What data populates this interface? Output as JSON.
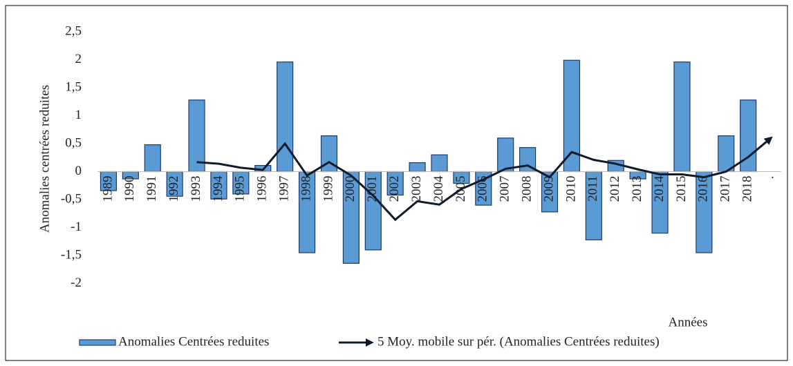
{
  "chart_data": {
    "type": "bar",
    "y_label": "Anomalies centrées reduites",
    "x_label": "Années",
    "categories": [
      "1989",
      "1990",
      "1991",
      "1992",
      "1993",
      "1994",
      "1995",
      "1996",
      "1997",
      "1998",
      "1999",
      "2000",
      "2001",
      "2002",
      "2003",
      "2004",
      "2005",
      "2006",
      "2007",
      "2008",
      "2009",
      "2010",
      "2011",
      "2012",
      "2013",
      "2014",
      "2015",
      "2016",
      "2017",
      "2018",
      "."
    ],
    "series": [
      {
        "name": "Anomalies Centrées reduites",
        "color": "#5b9bd5",
        "type": "bar",
        "values": [
          -0.34,
          -0.13,
          0.48,
          -0.44,
          1.28,
          -0.49,
          -0.4,
          0.11,
          1.96,
          -1.45,
          0.64,
          -1.64,
          -1.4,
          -0.42,
          0.16,
          0.3,
          -0.21,
          -0.6,
          0.6,
          0.43,
          -0.72,
          1.99,
          -1.22,
          0.2,
          -0.13,
          -1.1,
          1.96,
          -1.45,
          0.64,
          1.28,
          null
        ]
      },
      {
        "name": "5 Moy. mobile sur pér. (Anomalies Centrées reduites)",
        "color": "#0d1b2a",
        "type": "line",
        "values": [
          null,
          null,
          null,
          null,
          0.17,
          0.14,
          0.07,
          0.03,
          0.5,
          -0.07,
          0.17,
          -0.07,
          -0.43,
          -0.86,
          -0.53,
          -0.59,
          -0.31,
          -0.14,
          0.05,
          0.11,
          -0.1,
          0.35,
          0.21,
          0.14,
          0.04,
          -0.05,
          -0.05,
          -0.1,
          0.0,
          0.26,
          0.59
        ]
      }
    ],
    "ylim": [
      -2.5,
      2.5
    ],
    "yticks": [
      {
        "value": -2,
        "label": "-2"
      },
      {
        "value": -1.5,
        "label": "-1,5"
      },
      -1,
      {
        "value": -0.5,
        "label": "-0,5"
      },
      0,
      {
        "value": 0.5,
        "label": "0,5"
      },
      1,
      {
        "value": 1.5,
        "label": "1,5"
      },
      2,
      {
        "value": 2.5,
        "label": "2,5"
      }
    ],
    "grid": false,
    "legend": "bottom"
  }
}
